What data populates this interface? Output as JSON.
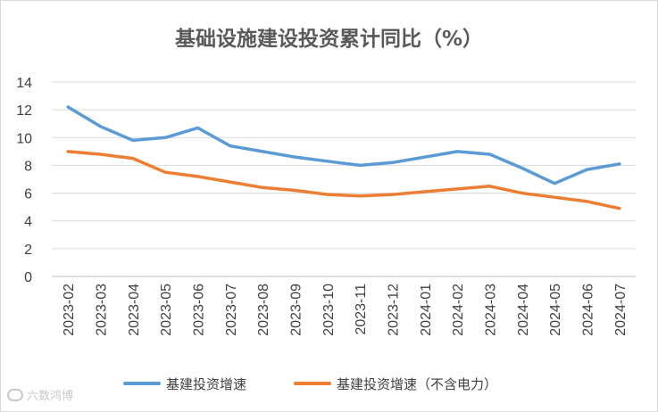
{
  "chart_data": {
    "type": "line",
    "title": "基础设施建设投资累计同比（%）",
    "xlabel": "",
    "ylabel": "",
    "categories": [
      "2023-02",
      "2023-03",
      "2023-04",
      "2023-05",
      "2023-06",
      "2023-07",
      "2023-08",
      "2023-09",
      "2023-10",
      "2023-11",
      "2023-12",
      "2024-01",
      "2024-02",
      "2024-03",
      "2024-04",
      "2024-05",
      "2024-06",
      "2024-07"
    ],
    "series": [
      {
        "name": "基建投资增速",
        "color": "#5b9bd5",
        "values": [
          12.2,
          10.8,
          9.8,
          10.0,
          10.7,
          9.4,
          9.0,
          8.6,
          8.3,
          8.0,
          8.2,
          8.6,
          9.0,
          8.8,
          7.8,
          6.7,
          7.7,
          8.1
        ]
      },
      {
        "name": "基建投资增速（不含电力）",
        "color": "#ed7d31",
        "values": [
          9.0,
          8.8,
          8.5,
          7.5,
          7.2,
          6.8,
          6.4,
          6.2,
          5.9,
          5.8,
          5.9,
          6.1,
          6.3,
          6.5,
          6.0,
          5.7,
          5.4,
          4.9
        ]
      }
    ],
    "ylim": [
      0,
      14
    ],
    "yticks": [
      0,
      2,
      4,
      6,
      8,
      10,
      12,
      14
    ],
    "grid": true,
    "legend": "bottom"
  },
  "watermark": "六数鸿博"
}
